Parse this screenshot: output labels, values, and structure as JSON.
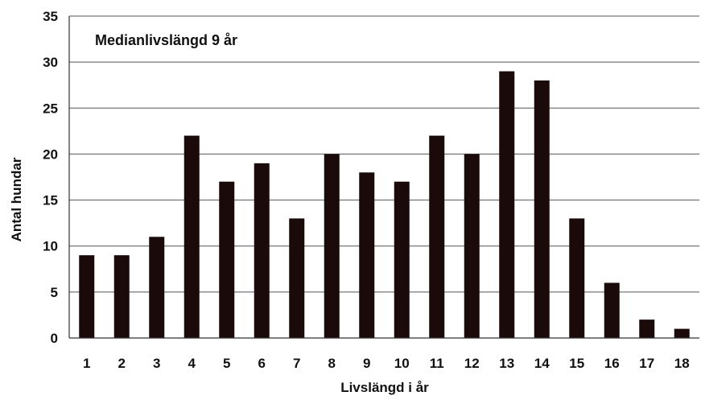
{
  "chart_data": {
    "type": "bar",
    "title": "",
    "annotation": "Medianlivslängd 9 år",
    "xlabel": "Livslängd i år",
    "ylabel": "Antal hundar",
    "categories": [
      "1",
      "2",
      "3",
      "4",
      "5",
      "6",
      "7",
      "8",
      "9",
      "10",
      "11",
      "12",
      "13",
      "14",
      "15",
      "16",
      "17",
      "18"
    ],
    "values": [
      9,
      9,
      11,
      22,
      17,
      19,
      13,
      20,
      18,
      17,
      22,
      20,
      29,
      28,
      13,
      6,
      2,
      1
    ],
    "ylim": [
      0,
      35
    ],
    "yticks": [
      "0",
      "5",
      "10",
      "15",
      "20",
      "25",
      "30",
      "35"
    ],
    "grid": true,
    "legend": "none",
    "bar_color": "#1a0a0a",
    "grid_color": "#555555",
    "text_color": "#111111"
  }
}
